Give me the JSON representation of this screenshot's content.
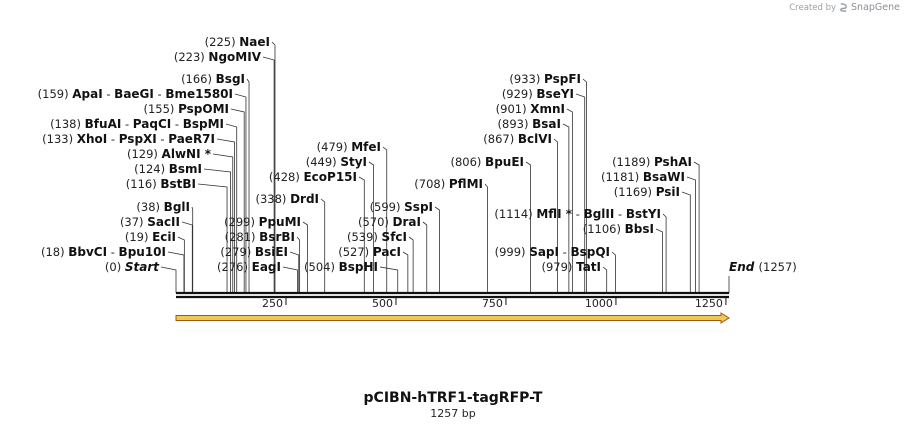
{
  "credit": {
    "prefix": "Created by",
    "brand": "SnapGene"
  },
  "title": "pCIBN-hTRF1-tagRFP-T",
  "length_label": "1257 bp",
  "map": {
    "start_label": "Start",
    "start_pos": "(0)",
    "end_label": "End",
    "end_pos": "(1257)",
    "total_bp": 1257,
    "ticks": [
      250,
      500,
      750,
      1000,
      1250
    ],
    "feature_color": "#f0c85a",
    "feature_outline": "#a05a0a"
  },
  "sites": [
    {
      "pos": "(18)",
      "bp": 18,
      "names": [
        "BbvCI",
        "Bpu10I"
      ]
    },
    {
      "pos": "(19)",
      "bp": 19,
      "names": [
        "EciI"
      ]
    },
    {
      "pos": "(37)",
      "bp": 37,
      "names": [
        "SacII"
      ]
    },
    {
      "pos": "(38)",
      "bp": 38,
      "names": [
        "BglI"
      ]
    },
    {
      "pos": "(116)",
      "bp": 116,
      "names": [
        "BstBI"
      ]
    },
    {
      "pos": "(124)",
      "bp": 124,
      "names": [
        "BsmI"
      ]
    },
    {
      "pos": "(129)",
      "bp": 129,
      "names": [
        "AlwNI *"
      ]
    },
    {
      "pos": "(133)",
      "bp": 133,
      "names": [
        "XhoI",
        "PspXI",
        "PaeR7I"
      ]
    },
    {
      "pos": "(138)",
      "bp": 138,
      "names": [
        "BfuAI",
        "PaqCI",
        "BspMI"
      ]
    },
    {
      "pos": "(155)",
      "bp": 155,
      "names": [
        "PspOMI"
      ]
    },
    {
      "pos": "(159)",
      "bp": 159,
      "names": [
        "ApaI",
        "BaeGI",
        "Bme1580I"
      ]
    },
    {
      "pos": "(166)",
      "bp": 166,
      "names": [
        "BsgI"
      ]
    },
    {
      "pos": "(223)",
      "bp": 223,
      "names": [
        "NgoMIV"
      ]
    },
    {
      "pos": "(225)",
      "bp": 225,
      "names": [
        "NaeI"
      ]
    },
    {
      "pos": "(276)",
      "bp": 276,
      "names": [
        "EagI"
      ]
    },
    {
      "pos": "(279)",
      "bp": 279,
      "names": [
        "BsiEI"
      ]
    },
    {
      "pos": "(281)",
      "bp": 281,
      "names": [
        "BsrBI"
      ]
    },
    {
      "pos": "(299)",
      "bp": 299,
      "names": [
        "PpuMI"
      ]
    },
    {
      "pos": "(338)",
      "bp": 338,
      "names": [
        "DrdI"
      ]
    },
    {
      "pos": "(428)",
      "bp": 428,
      "names": [
        "EcoP15I"
      ]
    },
    {
      "pos": "(449)",
      "bp": 449,
      "names": [
        "StyI"
      ]
    },
    {
      "pos": "(479)",
      "bp": 479,
      "names": [
        "MfeI"
      ]
    },
    {
      "pos": "(504)",
      "bp": 504,
      "names": [
        "BspHI"
      ]
    },
    {
      "pos": "(527)",
      "bp": 527,
      "names": [
        "PacI"
      ]
    },
    {
      "pos": "(539)",
      "bp": 539,
      "names": [
        "SfcI"
      ]
    },
    {
      "pos": "(570)",
      "bp": 570,
      "names": [
        "DraI"
      ]
    },
    {
      "pos": "(599)",
      "bp": 599,
      "names": [
        "SspI"
      ]
    },
    {
      "pos": "(708)",
      "bp": 708,
      "names": [
        "PflMI"
      ]
    },
    {
      "pos": "(806)",
      "bp": 806,
      "names": [
        "BpuEI"
      ]
    },
    {
      "pos": "(867)",
      "bp": 867,
      "names": [
        "BclVI"
      ]
    },
    {
      "pos": "(893)",
      "bp": 893,
      "names": [
        "BsaI"
      ]
    },
    {
      "pos": "(901)",
      "bp": 901,
      "names": [
        "XmnI"
      ]
    },
    {
      "pos": "(929)",
      "bp": 929,
      "names": [
        "BseYI"
      ]
    },
    {
      "pos": "(933)",
      "bp": 933,
      "names": [
        "PspFI"
      ]
    },
    {
      "pos": "(979)",
      "bp": 979,
      "names": [
        "TatI"
      ]
    },
    {
      "pos": "(999)",
      "bp": 999,
      "names": [
        "SapI",
        "BspQI"
      ]
    },
    {
      "pos": "(1106)",
      "bp": 1106,
      "names": [
        "BbsI"
      ]
    },
    {
      "pos": "(1114)",
      "bp": 1114,
      "names": [
        "MflI *",
        "BglII",
        "BstYI"
      ]
    },
    {
      "pos": "(1169)",
      "bp": 1169,
      "names": [
        "PsiI"
      ]
    },
    {
      "pos": "(1181)",
      "bp": 1181,
      "names": [
        "BsaWI"
      ]
    },
    {
      "pos": "(1189)",
      "bp": 1189,
      "names": [
        "PshAI"
      ]
    }
  ]
}
